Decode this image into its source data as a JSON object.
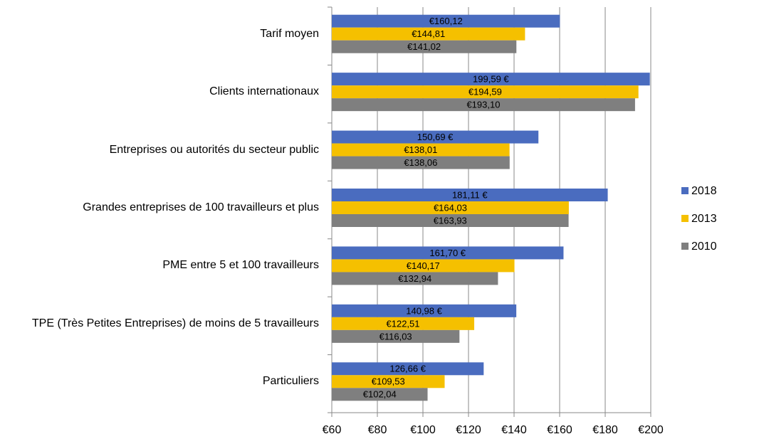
{
  "chart_data": {
    "type": "bar",
    "orientation": "horizontal",
    "categories": [
      "Tarif moyen",
      "Clients internationaux",
      "Entreprises ou autorités du secteur public",
      "Grandes entreprises de 100 travailleurs et plus",
      "PME entre 5 et 100 travailleurs",
      "TPE (Très Petites Entreprises) de moins de 5 travailleurs",
      "Particuliers"
    ],
    "series": [
      {
        "name": "2018",
        "color": "#4a6cbf",
        "values": [
          160.12,
          199.59,
          150.69,
          181.11,
          161.7,
          140.98,
          126.66
        ],
        "value_labels": [
          "€160,12",
          "199,59 €",
          "150,69 €",
          "181,11 €",
          "161,70 €",
          "140,98 €",
          "126,66 €"
        ]
      },
      {
        "name": "2013",
        "color": "#f5c000",
        "values": [
          144.81,
          194.59,
          138.01,
          164.03,
          140.17,
          122.51,
          109.53
        ],
        "value_labels": [
          "€144,81",
          "€194,59",
          "€138,01",
          "€164,03",
          "€140,17",
          "€122,51",
          "€109,53"
        ]
      },
      {
        "name": "2010",
        "color": "#7f7f7f",
        "values": [
          141.02,
          193.1,
          138.06,
          163.93,
          132.94,
          116.03,
          102.04
        ],
        "value_labels": [
          "€141,02",
          "€193,10",
          "€138,06",
          "€163,93",
          "€132,94",
          "€116,03",
          "€102,04"
        ]
      }
    ],
    "xlim": [
      60,
      200
    ],
    "xticks": [
      {
        "value": 60,
        "label": "€60"
      },
      {
        "value": 80,
        "label": "€80"
      },
      {
        "value": 100,
        "label": "€100"
      },
      {
        "value": 120,
        "label": "€120"
      },
      {
        "value": 140,
        "label": "€140"
      },
      {
        "value": 160,
        "label": "€160"
      },
      {
        "value": 180,
        "label": "€180"
      },
      {
        "value": 200,
        "label": "€200"
      }
    ],
    "grid": true,
    "legend": "right"
  }
}
